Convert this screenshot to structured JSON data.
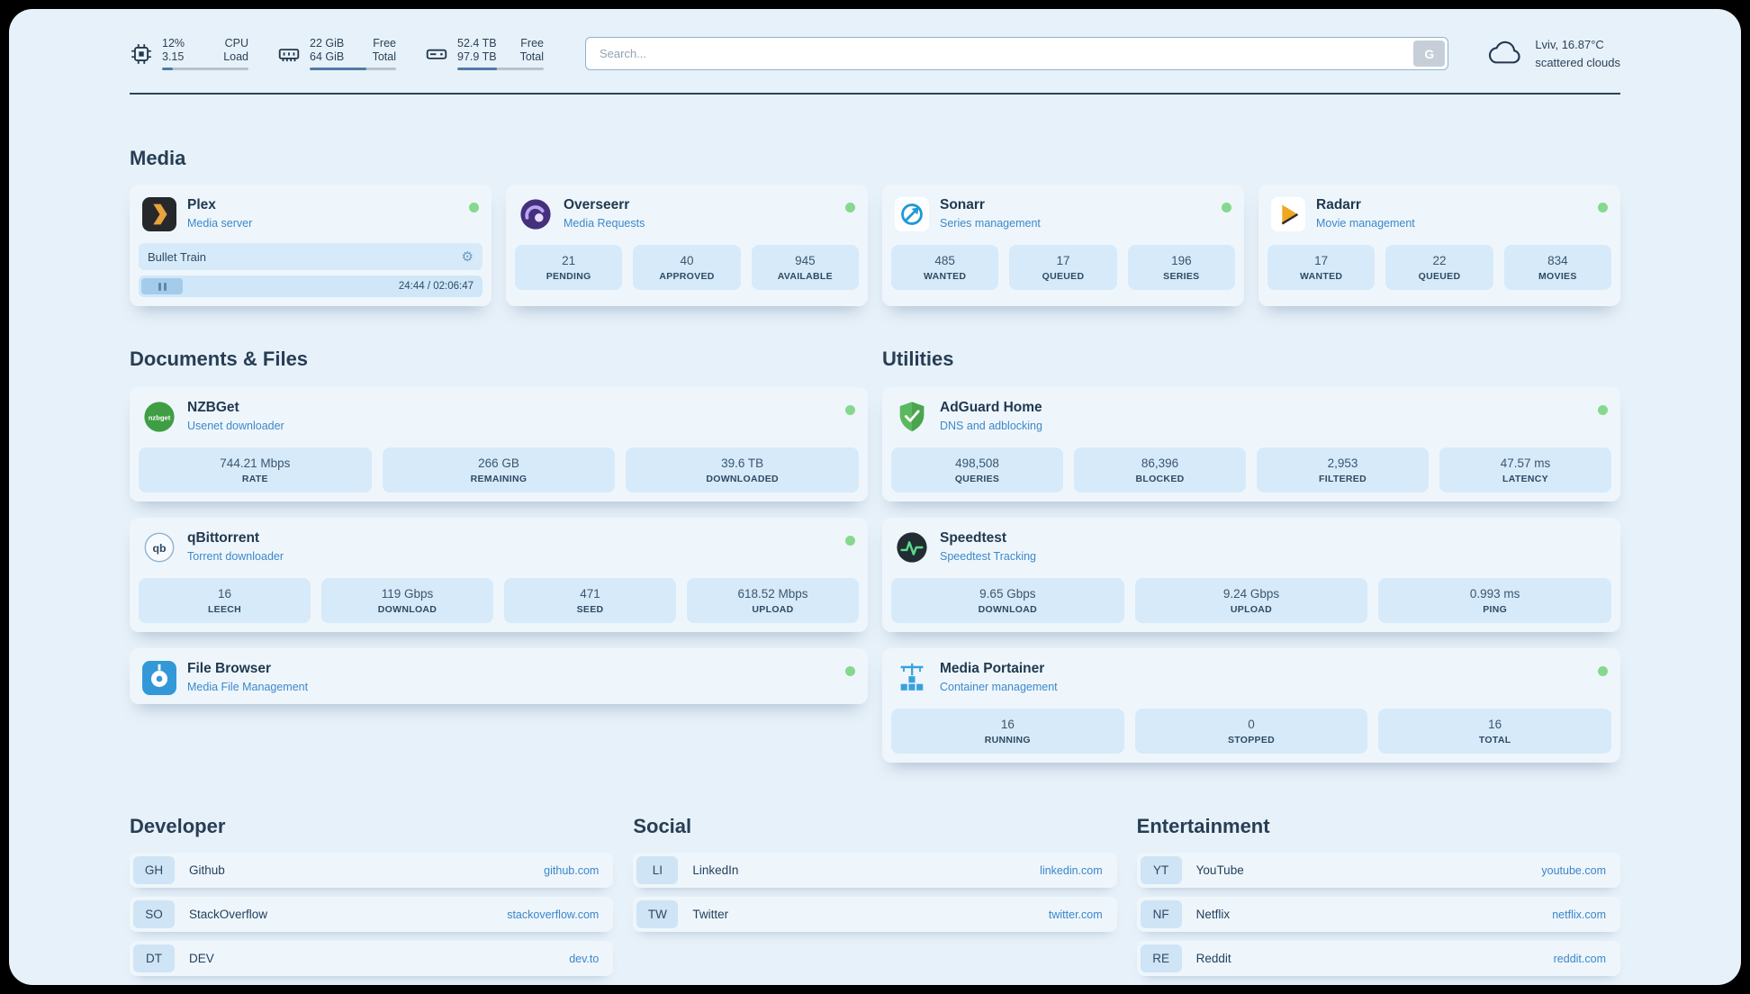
{
  "colors": {
    "background": "#e7f1f9",
    "accent": "#3b86c9",
    "status_green": "#86d88f",
    "chip": "#d6eaf9"
  },
  "icons": {
    "gear": "⚙",
    "nzbget_label": "nzbget",
    "qb_label": "qb"
  },
  "topbar": {
    "cpu": {
      "value1": "12%",
      "label1": "CPU",
      "value2": "3.15",
      "label2": "Load",
      "progress": 12
    },
    "memory": {
      "value1": "22 GiB",
      "label1": "Free",
      "value2": "64 GiB",
      "label2": "Total",
      "progress": 66
    },
    "disk": {
      "value1": "52.4 TB",
      "label1": "Free",
      "value2": "97.9 TB",
      "label2": "Total",
      "progress": 46
    },
    "search": {
      "placeholder": "Search...",
      "button_label": "G"
    },
    "weather": {
      "location": "Lviv, 16.87°C",
      "condition": "scattered clouds"
    }
  },
  "sections": {
    "media": {
      "title": "Media",
      "cards": [
        {
          "name": "Plex",
          "subtitle": "Media server",
          "player": {
            "track": "Bullet Train",
            "time": "24:44 / 02:06:47"
          }
        },
        {
          "name": "Overseerr",
          "subtitle": "Media Requests",
          "stats": [
            {
              "value": "21",
              "label": "PENDING"
            },
            {
              "value": "40",
              "label": "APPROVED"
            },
            {
              "value": "945",
              "label": "AVAILABLE"
            }
          ]
        },
        {
          "name": "Sonarr",
          "subtitle": "Series management",
          "stats": [
            {
              "value": "485",
              "label": "WANTED"
            },
            {
              "value": "17",
              "label": "QUEUED"
            },
            {
              "value": "196",
              "label": "SERIES"
            }
          ]
        },
        {
          "name": "Radarr",
          "subtitle": "Movie management",
          "stats": [
            {
              "value": "17",
              "label": "WANTED"
            },
            {
              "value": "22",
              "label": "QUEUED"
            },
            {
              "value": "834",
              "label": "MOVIES"
            }
          ]
        }
      ]
    },
    "documents": {
      "title": "Documents & Files",
      "cards": [
        {
          "name": "NZBGet",
          "subtitle": "Usenet downloader",
          "stats": [
            {
              "value": "744.21 Mbps",
              "label": "RATE"
            },
            {
              "value": "266 GB",
              "label": "REMAINING"
            },
            {
              "value": "39.6 TB",
              "label": "DOWNLOADED"
            }
          ]
        },
        {
          "name": "qBittorrent",
          "subtitle": "Torrent downloader",
          "stats": [
            {
              "value": "16",
              "label": "LEECH"
            },
            {
              "value": "119 Gbps",
              "label": "DOWNLOAD"
            },
            {
              "value": "471",
              "label": "SEED"
            },
            {
              "value": "618.52 Mbps",
              "label": "UPLOAD"
            }
          ]
        },
        {
          "name": "File Browser",
          "subtitle": "Media File Management"
        }
      ]
    },
    "utilities": {
      "title": "Utilities",
      "cards": [
        {
          "name": "AdGuard Home",
          "subtitle": "DNS and adblocking",
          "stats": [
            {
              "value": "498,508",
              "label": "QUERIES"
            },
            {
              "value": "86,396",
              "label": "BLOCKED"
            },
            {
              "value": "2,953",
              "label": "FILTERED"
            },
            {
              "value": "47.57 ms",
              "label": "LATENCY"
            }
          ]
        },
        {
          "name": "Speedtest",
          "subtitle": "Speedtest Tracking",
          "stats": [
            {
              "value": "9.65 Gbps",
              "label": "DOWNLOAD"
            },
            {
              "value": "9.24 Gbps",
              "label": "UPLOAD"
            },
            {
              "value": "0.993 ms",
              "label": "PING"
            }
          ]
        },
        {
          "name": "Media Portainer",
          "subtitle": "Container management",
          "stats": [
            {
              "value": "16",
              "label": "RUNNING"
            },
            {
              "value": "0",
              "label": "STOPPED"
            },
            {
              "value": "16",
              "label": "TOTAL"
            }
          ]
        }
      ]
    }
  },
  "bookmarks": [
    {
      "title": "Developer",
      "items": [
        {
          "abbr": "GH",
          "name": "Github",
          "url": "github.com"
        },
        {
          "abbr": "SO",
          "name": "StackOverflow",
          "url": "stackoverflow.com"
        },
        {
          "abbr": "DT",
          "name": "DEV",
          "url": "dev.to"
        }
      ]
    },
    {
      "title": "Social",
      "items": [
        {
          "abbr": "LI",
          "name": "LinkedIn",
          "url": "linkedin.com"
        },
        {
          "abbr": "TW",
          "name": "Twitter",
          "url": "twitter.com"
        }
      ]
    },
    {
      "title": "Entertainment",
      "items": [
        {
          "abbr": "YT",
          "name": "YouTube",
          "url": "youtube.com"
        },
        {
          "abbr": "NF",
          "name": "Netflix",
          "url": "netflix.com"
        },
        {
          "abbr": "RE",
          "name": "Reddit",
          "url": "reddit.com"
        }
      ]
    }
  ]
}
